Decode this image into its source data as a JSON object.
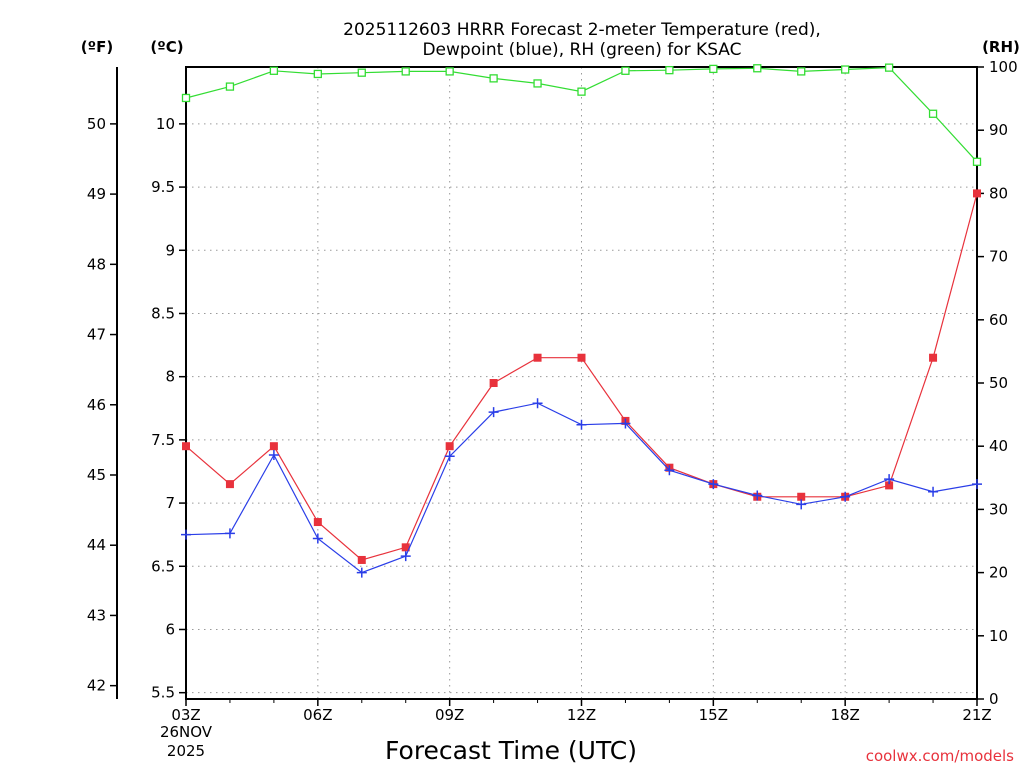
{
  "chart_data": {
    "type": "line",
    "title_line1": "2025112603 HRRR Forecast 2-meter Temperature (red),",
    "title_line2": "Dewpoint (blue), RH (green) for KSAC",
    "xlabel": "Forecast Time (UTC)",
    "x_date": "26NOV",
    "x_year": "2025",
    "x_tick_labels": [
      "03Z",
      "06Z",
      "09Z",
      "12Z",
      "15Z",
      "18Z",
      "21Z"
    ],
    "x_tick_hours": [
      3,
      6,
      9,
      12,
      15,
      18,
      21
    ],
    "xlim": [
      3,
      21
    ],
    "hours": [
      3,
      4,
      5,
      6,
      7,
      8,
      9,
      10,
      11,
      12,
      13,
      14,
      15,
      16,
      17,
      18,
      19,
      20,
      21
    ],
    "celsius_axis": {
      "unit_label": "(ºC)",
      "ylim": [
        5.45,
        10.45
      ],
      "ticks": [
        5.5,
        6,
        6.5,
        7,
        7.5,
        8,
        8.5,
        9,
        9.5,
        10
      ],
      "tick_labels": [
        "5.5",
        "6",
        "6.5",
        "7",
        "7.5",
        "8",
        "8.5",
        "9",
        "9.5",
        "10"
      ]
    },
    "fahrenheit_axis": {
      "unit_label": "(ºF)",
      "ticks": [
        42,
        43,
        44,
        45,
        46,
        47,
        48,
        49,
        50
      ],
      "tick_labels": [
        "42",
        "43",
        "44",
        "45",
        "46",
        "47",
        "48",
        "49",
        "50"
      ]
    },
    "rh_axis": {
      "unit_label": "(RH)",
      "ylim": [
        0,
        100
      ],
      "ticks": [
        0,
        10,
        20,
        30,
        40,
        50,
        60,
        70,
        80,
        90,
        100
      ],
      "tick_labels": [
        "0",
        "10",
        "20",
        "30",
        "40",
        "50",
        "60",
        "70",
        "80",
        "90",
        "100"
      ]
    },
    "series": [
      {
        "name": "Temperature",
        "axis": "celsius",
        "color": "#e8323c",
        "marker": "square",
        "values": [
          7.45,
          7.15,
          7.45,
          6.85,
          6.55,
          6.65,
          7.45,
          7.95,
          8.15,
          8.15,
          7.65,
          7.28,
          7.15,
          7.05,
          7.05,
          7.05,
          7.14,
          8.15,
          9.45
        ]
      },
      {
        "name": "Dewpoint",
        "axis": "celsius",
        "color": "#2a3ee8",
        "marker": "plus",
        "values": [
          6.75,
          6.76,
          7.38,
          6.72,
          6.45,
          6.58,
          7.37,
          7.72,
          7.79,
          7.62,
          7.63,
          7.26,
          7.15,
          7.06,
          6.99,
          7.05,
          7.19,
          7.09,
          7.15
        ]
      },
      {
        "name": "RH",
        "axis": "rh",
        "color": "#33dd33",
        "marker": "open-square",
        "values": [
          95.1,
          96.9,
          99.4,
          98.9,
          99.1,
          99.3,
          99.3,
          98.2,
          97.4,
          96.1,
          99.4,
          99.5,
          99.7,
          99.8,
          99.3,
          99.6,
          99.9,
          92.6,
          85.0
        ]
      }
    ]
  },
  "credit": "coolwx.com/models",
  "colors": {
    "temperature": "#e8323c",
    "dewpoint": "#2a3ee8",
    "rh": "#33dd33",
    "credit": "#e8323c"
  }
}
